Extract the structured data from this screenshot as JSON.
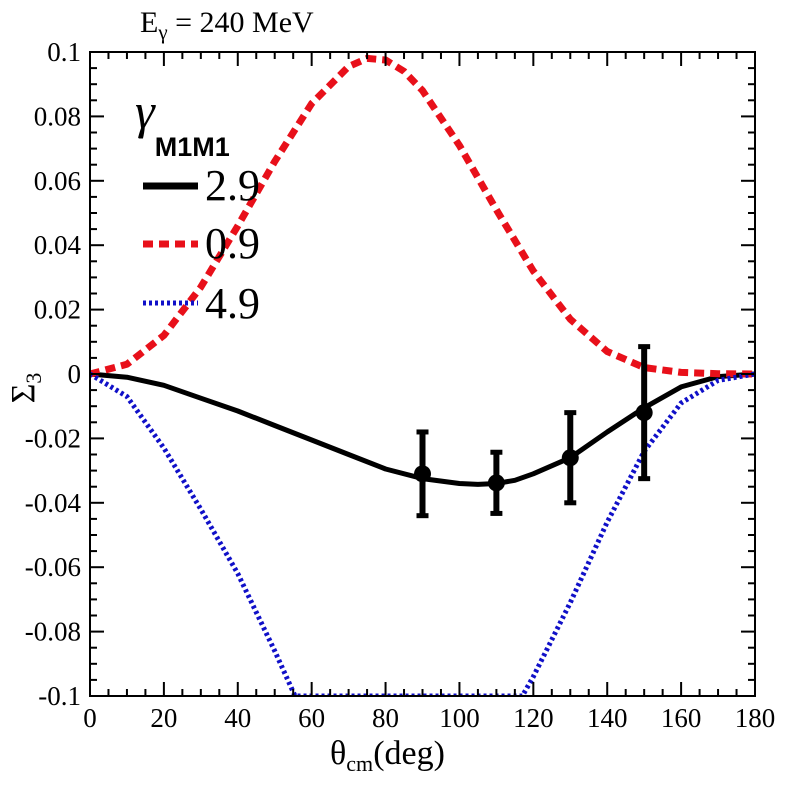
{
  "chart_data": {
    "type": "line",
    "title": "E",
    "title_sub": "γ",
    "title_rest": " = 240 MeV",
    "xlabel": "θ",
    "xlabel_sub": "cm",
    "xlabel_rest": "(deg)",
    "ylabel": "Σ",
    "ylabel_sub": "3",
    "xlim": [
      0,
      180
    ],
    "ylim": [
      -0.1,
      0.1
    ],
    "x_ticks": [
      0,
      20,
      40,
      60,
      80,
      100,
      120,
      140,
      160,
      180
    ],
    "x_tick_labels": [
      "0",
      "20",
      "40",
      "60",
      "80",
      "100",
      "120",
      "140",
      "160",
      "180"
    ],
    "y_ticks": [
      -0.1,
      -0.08,
      -0.06,
      -0.04,
      -0.02,
      0,
      0.02,
      0.04,
      0.06,
      0.08,
      0.1
    ],
    "y_tick_labels": [
      "-0.1",
      "-0.08",
      "-0.06",
      "-0.04",
      "-0.02",
      "0",
      "0.02",
      "0.04",
      "0.06",
      "0.08",
      "0.1"
    ],
    "grid": false,
    "legend": {
      "placement": "top-left",
      "title_symbol": "γ",
      "title_sub": "M1M1",
      "entries": [
        "2.9",
        "0.9",
        "4.9"
      ]
    },
    "series": [
      {
        "name": "2.9",
        "color": "#000000",
        "style": "solid",
        "x": [
          0,
          10,
          20,
          30,
          40,
          50,
          60,
          70,
          80,
          90,
          100,
          105,
          110,
          115,
          120,
          130,
          140,
          150,
          160,
          170,
          180
        ],
        "y": [
          0,
          -0.001,
          -0.0035,
          -0.0075,
          -0.0115,
          -0.016,
          -0.0205,
          -0.025,
          -0.0295,
          -0.0325,
          -0.034,
          -0.0343,
          -0.034,
          -0.033,
          -0.031,
          -0.026,
          -0.018,
          -0.0105,
          -0.004,
          -0.0008,
          0
        ]
      },
      {
        "name": "0.9",
        "color": "#e8101a",
        "style": "dashed",
        "x": [
          0,
          10,
          20,
          30,
          40,
          50,
          60,
          70,
          75,
          80,
          85,
          90,
          100,
          110,
          120,
          130,
          140,
          150,
          160,
          170,
          180
        ],
        "y": [
          0,
          0.003,
          0.012,
          0.027,
          0.046,
          0.066,
          0.084,
          0.0955,
          0.098,
          0.0975,
          0.094,
          0.088,
          0.071,
          0.051,
          0.032,
          0.017,
          0.007,
          0.002,
          0.0005,
          0.0001,
          0
        ]
      },
      {
        "name": "4.9",
        "color": "#1010c8",
        "style": "dotted",
        "x": [
          0,
          10,
          20,
          30,
          40,
          50,
          55.5,
          117,
          120,
          130,
          140,
          150,
          160,
          170,
          180
        ],
        "y": [
          0,
          -0.007,
          -0.023,
          -0.042,
          -0.062,
          -0.086,
          -0.1,
          -0.1,
          -0.094,
          -0.071,
          -0.046,
          -0.024,
          -0.009,
          -0.002,
          0
        ]
      }
    ],
    "data_points": {
      "color": "#000000",
      "x": [
        90,
        110,
        130,
        150
      ],
      "y": [
        -0.031,
        -0.0338,
        -0.026,
        -0.012
      ],
      "yerr": [
        0.013,
        0.0095,
        0.014,
        0.0205
      ]
    }
  }
}
